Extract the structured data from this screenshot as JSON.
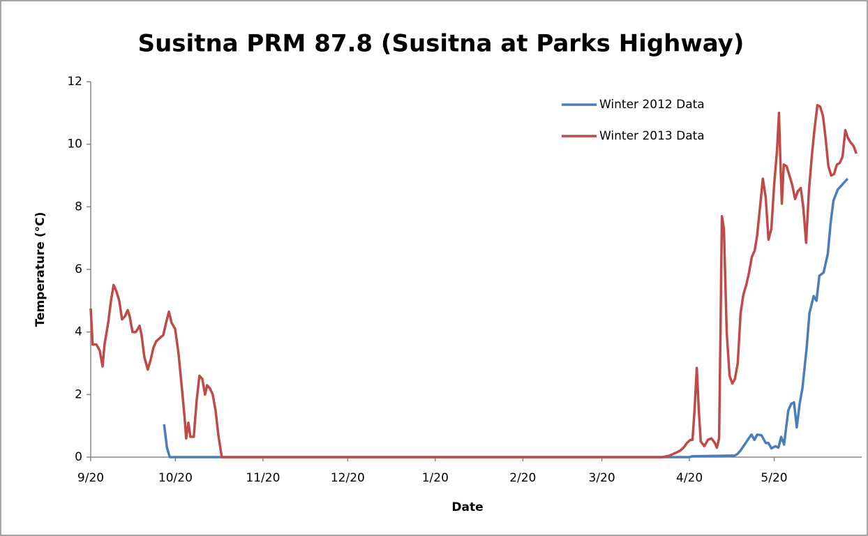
{
  "chart_data": {
    "type": "line",
    "title": "Susitna PRM 87.8 (Susitna at Parks Highway)",
    "x_label": "Date",
    "y_label": "Temperature (°C)",
    "xlim": [
      0,
      273
    ],
    "ylim": [
      0,
      12
    ],
    "xticks": [
      {
        "value": 0,
        "label": "9/20"
      },
      {
        "value": 30,
        "label": "10/20"
      },
      {
        "value": 61,
        "label": "11/20"
      },
      {
        "value": 91,
        "label": "12/20"
      },
      {
        "value": 122,
        "label": "1/20"
      },
      {
        "value": 153,
        "label": "2/20"
      },
      {
        "value": 181,
        "label": "3/20"
      },
      {
        "value": 212,
        "label": "4/20"
      },
      {
        "value": 242,
        "label": "5/20"
      }
    ],
    "yticks": [
      0,
      2,
      4,
      6,
      8,
      10,
      12
    ],
    "grid": false,
    "legend": "top-right",
    "series": [
      {
        "name": "Winter 2012 Data",
        "color": "#4a7ebb",
        "x": [
          26,
          27,
          28,
          212,
          213,
          228,
          229,
          230,
          231.5,
          233,
          234,
          235,
          236,
          237.5,
          239,
          240,
          241,
          242.5,
          243.5,
          244.5,
          245.5,
          247,
          248,
          249,
          250,
          251,
          252,
          253.5,
          254.5,
          256,
          257,
          258,
          259.5,
          261,
          262,
          263,
          264.5,
          266,
          267,
          268
        ],
        "values": [
          1.05,
          0.3,
          0,
          0,
          0.03,
          0.05,
          0.1,
          0.2,
          0.4,
          0.6,
          0.72,
          0.55,
          0.72,
          0.7,
          0.45,
          0.45,
          0.28,
          0.35,
          0.3,
          0.65,
          0.4,
          1.5,
          1.7,
          1.75,
          0.95,
          1.7,
          2.2,
          3.5,
          4.6,
          5.15,
          5,
          5.8,
          5.9,
          6.5,
          7.5,
          8.2,
          8.55,
          8.7,
          8.8,
          8.9
        ]
      },
      {
        "name": "Winter 2013 Data",
        "color": "#be4b48",
        "x": [
          0,
          0.7,
          2,
          3.2,
          4.2,
          4.9,
          6.2,
          7.2,
          8.1,
          9.1,
          10.1,
          11.1,
          12.1,
          13.1,
          13.8,
          14.8,
          16,
          17.3,
          18,
          19,
          20.2,
          21.2,
          22.2,
          23.2,
          24.4,
          25.7,
          26.7,
          27.7,
          28.6,
          29.9,
          31.1,
          32.3,
          33.3,
          33.8,
          34.6,
          35.3,
          36.5,
          37.5,
          38.5,
          39.5,
          40.5,
          41.2,
          42.2,
          43.2,
          44.2,
          45.2,
          46.4,
          202.5,
          204.9,
          207.4,
          208.6,
          209.9,
          211.1,
          212.3,
          213.1,
          213.8,
          214.6,
          215.3,
          216,
          217.3,
          218.5,
          219.8,
          221,
          221.7,
          222.5,
          223,
          223.5,
          224.2,
          225.2,
          226.2,
          227.2,
          228.1,
          229.1,
          230.1,
          231.1,
          232.1,
          233.1,
          234.1,
          235.1,
          236,
          237,
          238,
          239,
          240,
          241,
          242,
          243,
          243.7,
          244.2,
          244.7,
          245.4,
          246.4,
          247.4,
          248.4,
          249.4,
          250.4,
          251.4,
          252.3,
          253.3,
          254.3,
          255.3,
          256.3,
          257.3,
          258.3,
          259.3,
          260.2,
          261.2,
          262.2,
          263.2,
          264.2,
          265.2,
          266.2,
          267.2,
          268.1,
          269.1,
          270.1,
          271.1
        ],
        "values": [
          4.75,
          3.6,
          3.6,
          3.4,
          2.9,
          3.6,
          4.3,
          5.0,
          5.5,
          5.3,
          5.0,
          4.4,
          4.5,
          4.7,
          4.5,
          4.0,
          4.0,
          4.2,
          3.9,
          3.2,
          2.8,
          3.1,
          3.5,
          3.7,
          3.8,
          3.9,
          4.3,
          4.65,
          4.3,
          4.1,
          3.3,
          2.2,
          1.2,
          0.6,
          1.1,
          0.65,
          0.65,
          1.8,
          2.6,
          2.5,
          2.0,
          2.3,
          2.2,
          2.0,
          1.5,
          0.7,
          0,
          0,
          0.05,
          0.15,
          0.2,
          0.3,
          0.45,
          0.55,
          0.55,
          1.5,
          2.85,
          1.5,
          0.5,
          0.35,
          0.55,
          0.6,
          0.45,
          0.3,
          0.6,
          4.0,
          7.7,
          7.3,
          4.0,
          2.6,
          2.35,
          2.5,
          3.0,
          4.6,
          5.2,
          5.5,
          5.9,
          6.4,
          6.6,
          7.1,
          8.0,
          8.9,
          8.3,
          6.95,
          7.3,
          8.7,
          9.8,
          11.0,
          9.5,
          8.1,
          9.35,
          9.3,
          9.0,
          8.7,
          8.25,
          8.5,
          8.6,
          8.0,
          6.85,
          8.5,
          9.6,
          10.5,
          11.25,
          11.2,
          10.9,
          10.2,
          9.3,
          9.0,
          9.05,
          9.35,
          9.4,
          9.6,
          10.45,
          10.2,
          10.05,
          9.95,
          9.7
        ]
      }
    ]
  }
}
